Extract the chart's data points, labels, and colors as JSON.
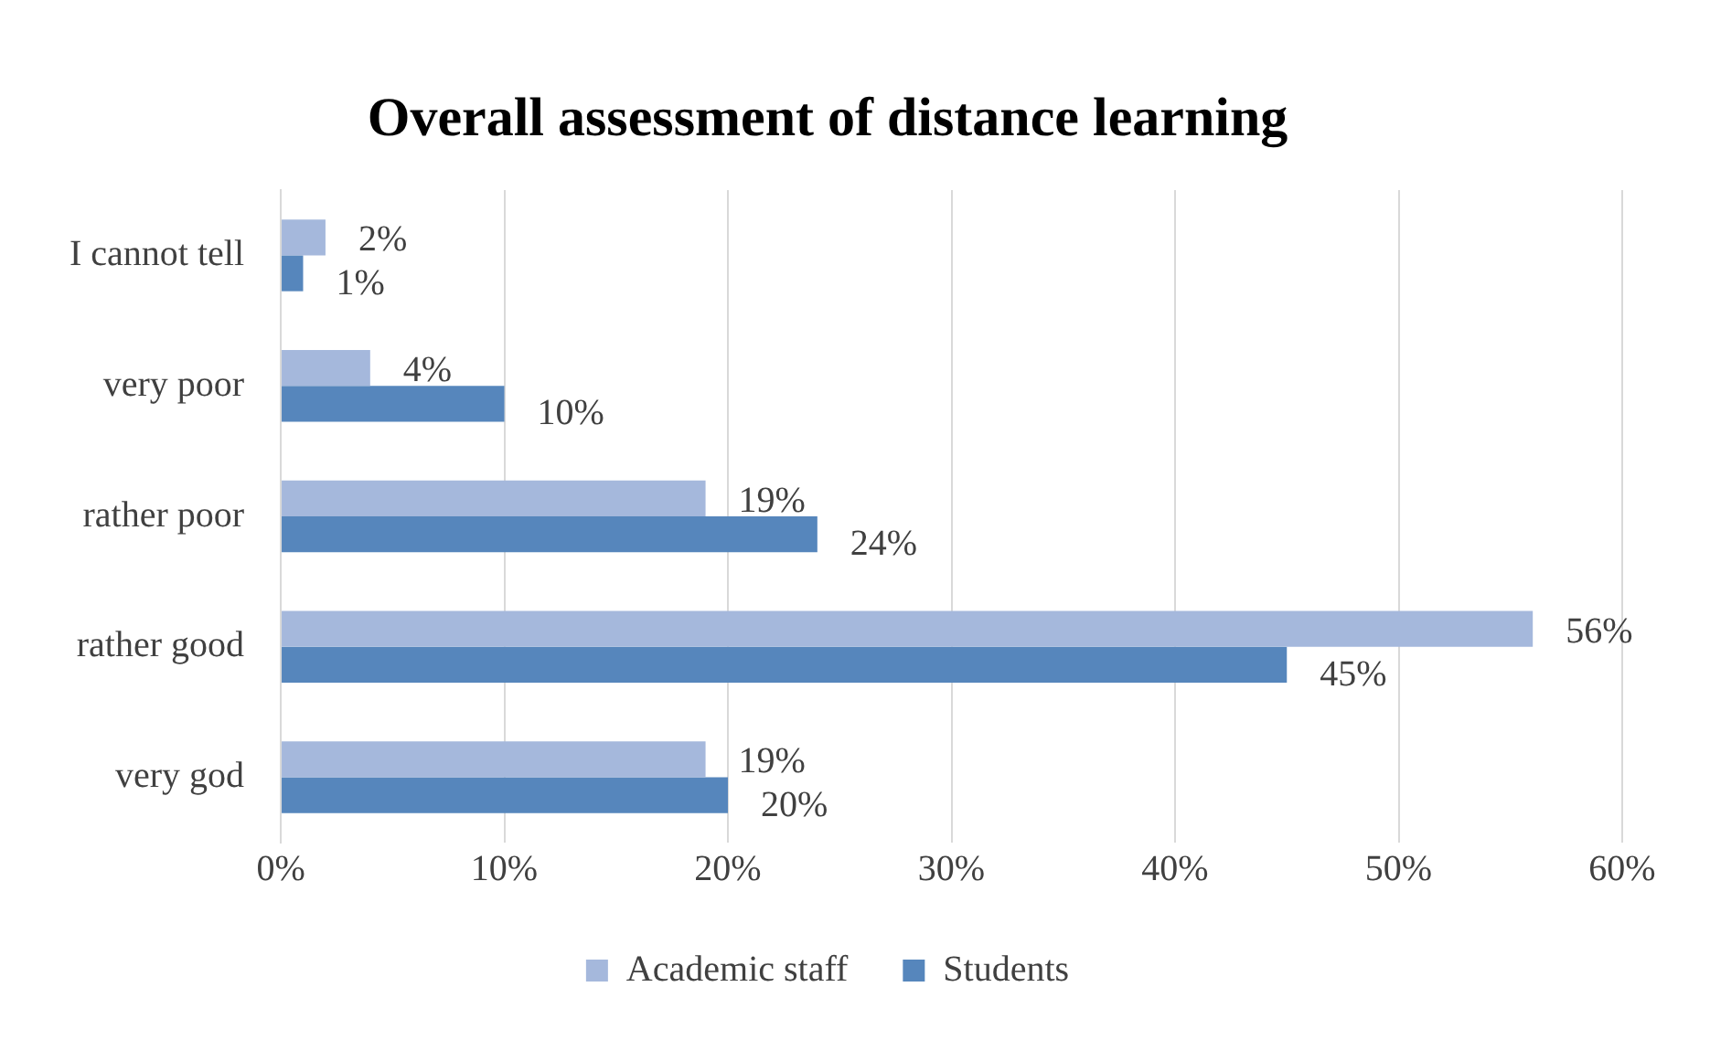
{
  "chart_data": {
    "type": "bar",
    "orientation": "horizontal",
    "title": "Overall assessment of distance learning",
    "categories": [
      "I cannot tell",
      "very poor",
      "rather poor",
      "rather good",
      "very god"
    ],
    "series": [
      {
        "name": "Academic staff",
        "color": "#a5b8dc",
        "values": [
          2,
          4,
          19,
          56,
          19
        ],
        "value_labels": [
          "2%",
          "4%",
          "19%",
          "56%",
          "19%"
        ]
      },
      {
        "name": "Students",
        "color": "#5686bc",
        "values": [
          1,
          10,
          24,
          45,
          20
        ],
        "value_labels": [
          "1%",
          "10%",
          "24%",
          "45%",
          "20%"
        ]
      }
    ],
    "xlim": [
      0,
      60
    ],
    "xticks": [
      {
        "value": 0,
        "label": "0%"
      },
      {
        "value": 10,
        "label": "10%"
      },
      {
        "value": 20,
        "label": "20%"
      },
      {
        "value": 30,
        "label": "30%"
      },
      {
        "value": 40,
        "label": "40%"
      },
      {
        "value": 50,
        "label": "50%"
      },
      {
        "value": 60,
        "label": "60%"
      }
    ],
    "grid": "x",
    "legend": "bottom"
  }
}
